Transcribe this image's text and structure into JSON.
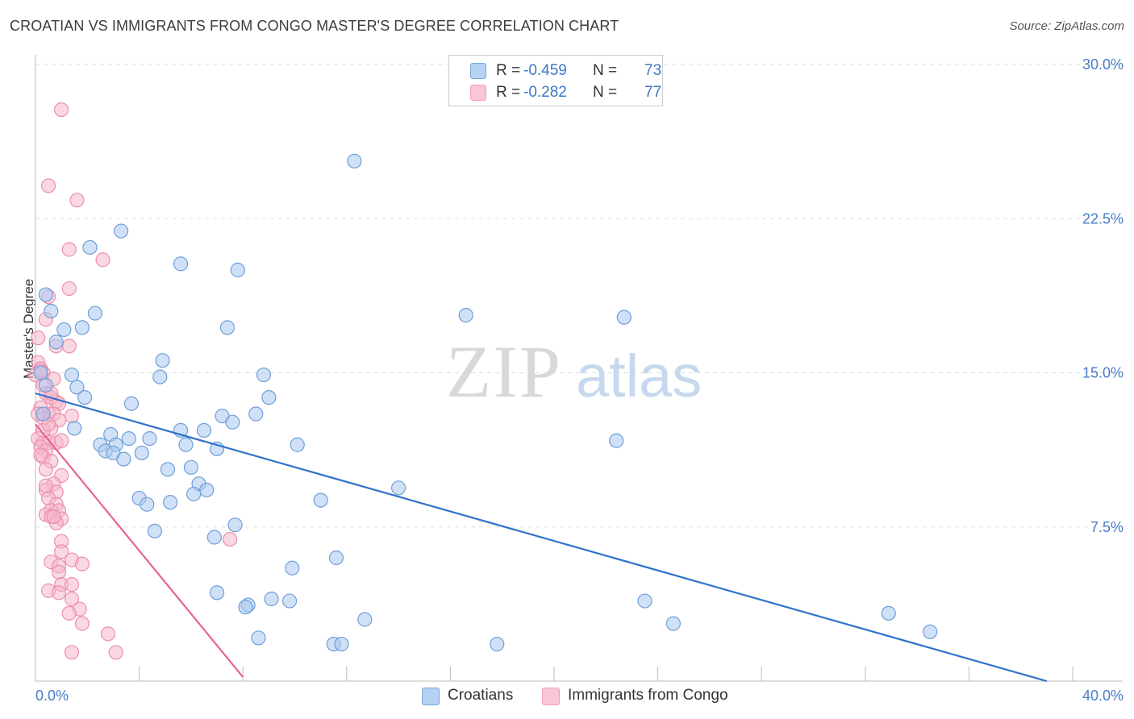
{
  "header": {
    "title": "CROATIAN VS IMMIGRANTS FROM CONGO MASTER'S DEGREE CORRELATION CHART",
    "source": "Source: ZipAtlas.com"
  },
  "watermark": {
    "zip": "ZIP",
    "atlas": "atlas"
  },
  "legend": {
    "rows": [
      {
        "r_label": "R =",
        "r_value": "-0.459",
        "n_label": "N =",
        "n_value": "73"
      },
      {
        "r_label": "R =",
        "r_value": "-0.282",
        "n_label": "N =",
        "n_value": "77"
      }
    ]
  },
  "bottom_legend": {
    "items": [
      {
        "label": "Croatians"
      },
      {
        "label": "Immigrants from Congo"
      }
    ]
  },
  "colors": {
    "blue_fill": "#a9c8f0",
    "blue_stroke": "#6f9fd8",
    "blue_line": "#2f72c9",
    "pink_fill": "#f6b8cb",
    "pink_stroke": "#ec8fae",
    "pink_line": "#e8638f",
    "grid": "#dddddd",
    "axis_text": "#4a7cc8"
  },
  "chart_data": {
    "type": "scatter",
    "title": "CROATIAN VS IMMIGRANTS FROM CONGO MASTER'S DEGREE CORRELATION CHART",
    "xlabel": "",
    "ylabel": "Master's Degree",
    "xlim": [
      0,
      40
    ],
    "ylim": [
      0,
      30
    ],
    "x_tick_labels": [
      "0.0%",
      "40.0%"
    ],
    "y_tick_labels": [
      "30.0%",
      "22.5%",
      "15.0%",
      "7.5%"
    ],
    "y_ticks": [
      30,
      22.5,
      15,
      7.5
    ],
    "series": [
      {
        "name": "Croatians",
        "r": -0.459,
        "n": 73,
        "trend": {
          "x": [
            0,
            39
          ],
          "y": [
            14.0,
            0.0
          ]
        },
        "points": [
          [
            12.3,
            25.3
          ],
          [
            3.3,
            21.9
          ],
          [
            2.1,
            21.1
          ],
          [
            5.6,
            20.3
          ],
          [
            7.8,
            20.0
          ],
          [
            0.4,
            18.8
          ],
          [
            0.6,
            18.0
          ],
          [
            2.3,
            17.9
          ],
          [
            16.6,
            17.8
          ],
          [
            22.7,
            17.7
          ],
          [
            1.1,
            17.1
          ],
          [
            1.8,
            17.2
          ],
          [
            7.4,
            17.2
          ],
          [
            0.8,
            16.5
          ],
          [
            4.9,
            15.6
          ],
          [
            1.4,
            14.9
          ],
          [
            4.8,
            14.8
          ],
          [
            8.8,
            14.9
          ],
          [
            0.4,
            14.4
          ],
          [
            1.6,
            14.3
          ],
          [
            1.9,
            13.8
          ],
          [
            9.0,
            13.8
          ],
          [
            3.7,
            13.5
          ],
          [
            8.5,
            13.0
          ],
          [
            7.2,
            12.9
          ],
          [
            7.6,
            12.6
          ],
          [
            1.5,
            12.3
          ],
          [
            5.6,
            12.2
          ],
          [
            6.5,
            12.2
          ],
          [
            2.9,
            12.0
          ],
          [
            4.4,
            11.8
          ],
          [
            3.6,
            11.8
          ],
          [
            22.4,
            11.7
          ],
          [
            2.5,
            11.5
          ],
          [
            3.1,
            11.5
          ],
          [
            5.8,
            11.5
          ],
          [
            10.1,
            11.5
          ],
          [
            7.0,
            11.3
          ],
          [
            2.7,
            11.2
          ],
          [
            3.0,
            11.1
          ],
          [
            4.1,
            11.1
          ],
          [
            3.4,
            10.8
          ],
          [
            5.1,
            10.3
          ],
          [
            6.0,
            10.4
          ],
          [
            6.3,
            9.6
          ],
          [
            6.6,
            9.3
          ],
          [
            14.0,
            9.4
          ],
          [
            6.1,
            9.1
          ],
          [
            4.0,
            8.9
          ],
          [
            11.0,
            8.8
          ],
          [
            5.2,
            8.7
          ],
          [
            4.3,
            8.6
          ],
          [
            7.7,
            7.6
          ],
          [
            4.6,
            7.3
          ],
          [
            6.9,
            7.0
          ],
          [
            11.6,
            6.0
          ],
          [
            9.9,
            5.5
          ],
          [
            7.0,
            4.3
          ],
          [
            8.2,
            3.7
          ],
          [
            8.1,
            3.6
          ],
          [
            9.1,
            4.0
          ],
          [
            9.8,
            3.9
          ],
          [
            23.5,
            3.9
          ],
          [
            32.9,
            3.3
          ],
          [
            12.7,
            3.0
          ],
          [
            24.6,
            2.8
          ],
          [
            34.5,
            2.4
          ],
          [
            8.6,
            2.1
          ],
          [
            11.5,
            1.8
          ],
          [
            11.8,
            1.8
          ],
          [
            17.8,
            1.8
          ],
          [
            0.2,
            15.0
          ],
          [
            0.3,
            13.0
          ]
        ]
      },
      {
        "name": "Immigrants from Congo",
        "r": -0.282,
        "n": 77,
        "trend": {
          "x": [
            0,
            8
          ],
          "y": [
            12.5,
            0.2
          ]
        },
        "points": [
          [
            1.0,
            27.8
          ],
          [
            0.5,
            24.1
          ],
          [
            1.6,
            23.4
          ],
          [
            1.3,
            21.0
          ],
          [
            2.6,
            20.5
          ],
          [
            1.3,
            19.1
          ],
          [
            0.5,
            18.7
          ],
          [
            0.4,
            17.6
          ],
          [
            0.1,
            16.7
          ],
          [
            0.8,
            16.3
          ],
          [
            1.3,
            16.3
          ],
          [
            0.1,
            15.5
          ],
          [
            0.2,
            15.2
          ],
          [
            0.3,
            15.0
          ],
          [
            0.0,
            14.9
          ],
          [
            0.7,
            14.7
          ],
          [
            0.3,
            14.4
          ],
          [
            0.4,
            14.0
          ],
          [
            0.6,
            13.8
          ],
          [
            0.8,
            13.6
          ],
          [
            0.9,
            13.5
          ],
          [
            0.2,
            13.3
          ],
          [
            0.5,
            13.0
          ],
          [
            0.7,
            13.0
          ],
          [
            1.4,
            12.9
          ],
          [
            0.3,
            12.8
          ],
          [
            0.9,
            12.7
          ],
          [
            0.6,
            12.3
          ],
          [
            0.1,
            11.8
          ],
          [
            0.3,
            11.6
          ],
          [
            0.5,
            11.6
          ],
          [
            0.8,
            11.6
          ],
          [
            1.0,
            11.7
          ],
          [
            0.2,
            11.4
          ],
          [
            0.4,
            11.2
          ],
          [
            0.3,
            10.9
          ],
          [
            0.6,
            10.7
          ],
          [
            0.4,
            10.3
          ],
          [
            1.0,
            10.0
          ],
          [
            0.7,
            9.6
          ],
          [
            0.4,
            9.3
          ],
          [
            0.8,
            9.2
          ],
          [
            0.5,
            8.9
          ],
          [
            0.8,
            8.6
          ],
          [
            0.6,
            8.3
          ],
          [
            0.9,
            8.3
          ],
          [
            0.4,
            8.1
          ],
          [
            0.6,
            8.0
          ],
          [
            1.0,
            7.9
          ],
          [
            0.8,
            7.7
          ],
          [
            1.0,
            6.8
          ],
          [
            7.5,
            6.9
          ],
          [
            1.0,
            6.3
          ],
          [
            0.6,
            5.8
          ],
          [
            1.4,
            5.9
          ],
          [
            1.8,
            5.7
          ],
          [
            0.9,
            5.6
          ],
          [
            0.9,
            5.3
          ],
          [
            1.0,
            4.7
          ],
          [
            1.4,
            4.7
          ],
          [
            0.5,
            4.4
          ],
          [
            0.9,
            4.3
          ],
          [
            1.4,
            4.0
          ],
          [
            1.7,
            3.5
          ],
          [
            1.3,
            3.3
          ],
          [
            1.8,
            2.8
          ],
          [
            2.8,
            2.3
          ],
          [
            3.1,
            1.4
          ],
          [
            1.4,
            1.4
          ],
          [
            0.2,
            15.1
          ],
          [
            0.1,
            13.0
          ],
          [
            0.3,
            12.2
          ],
          [
            0.2,
            11.0
          ],
          [
            0.4,
            9.5
          ],
          [
            0.6,
            14.0
          ],
          [
            0.5,
            12.5
          ],
          [
            0.7,
            8.0
          ]
        ]
      }
    ]
  }
}
